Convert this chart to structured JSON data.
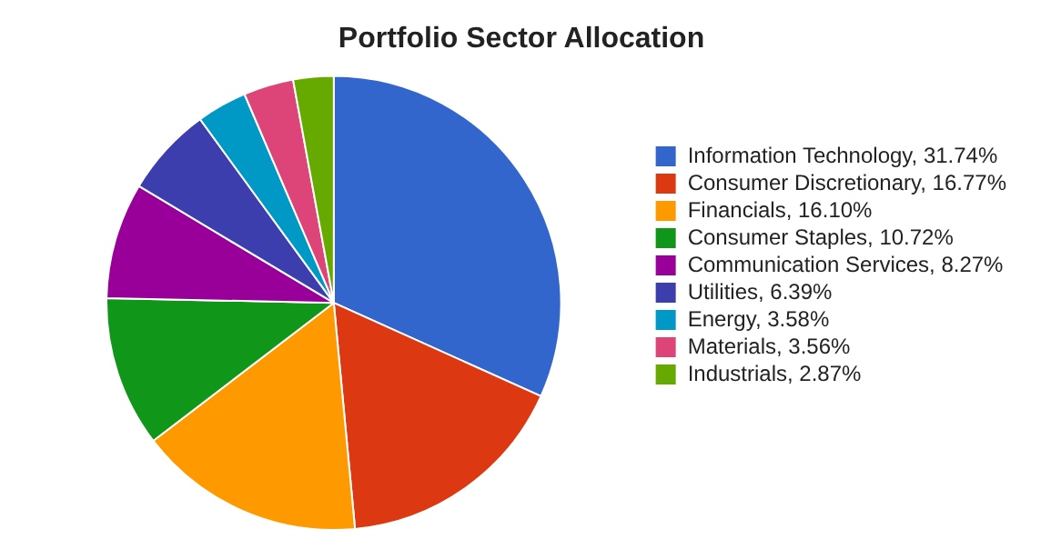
{
  "chart_data": {
    "type": "pie",
    "title": "Portfolio Sector Allocation",
    "categories": [
      "Information Technology, 31.74%",
      "Consumer Discretionary, 16.77%",
      "Financials, 16.10%",
      "Consumer Staples, 10.72%",
      "Communication Services, 8.27%",
      "Utilities, 6.39%",
      "Energy, 3.58%",
      "Materials, 3.56%",
      "Industrials, 2.87%"
    ],
    "values": [
      31.74,
      16.77,
      16.1,
      10.72,
      8.27,
      6.39,
      3.58,
      3.56,
      2.87
    ],
    "colors": [
      "#3366cc",
      "#dc3912",
      "#ff9900",
      "#109618",
      "#990099",
      "#3b3eac",
      "#0099c6",
      "#dd4477",
      "#66aa00"
    ],
    "legend": "right"
  }
}
